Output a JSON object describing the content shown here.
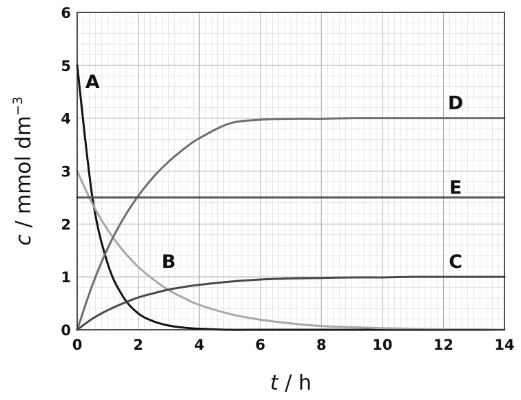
{
  "chart_data": {
    "type": "line",
    "xlabel": {
      "var": "t",
      "sep": " / ",
      "unit": "h"
    },
    "ylabel": {
      "var": "c",
      "sep": " / ",
      "unit": "mmol dm",
      "exp": "−3"
    },
    "xlim": [
      0,
      14
    ],
    "ylim": [
      0,
      6
    ],
    "xticks": [
      0,
      2,
      4,
      6,
      8,
      10,
      12,
      14
    ],
    "yticks": [
      0,
      1,
      2,
      3,
      4,
      5,
      6
    ],
    "grid": {
      "major": true,
      "minor": true,
      "minor_per_major_x": 10,
      "minor_per_major_y": 5
    },
    "x": [
      0,
      0.5,
      1,
      1.5,
      2,
      2.5,
      3,
      3.5,
      4,
      5,
      6,
      7,
      8,
      9,
      10,
      11,
      12,
      13,
      14
    ],
    "series": [
      {
        "name": "A",
        "color": "#111111",
        "values": [
          5.0,
          2.5,
          1.25,
          0.63,
          0.31,
          0.16,
          0.08,
          0.04,
          0.02,
          0.0,
          0.0,
          0.0,
          0.0,
          0.0,
          0.0,
          0.0,
          0.0,
          0.0,
          0.0
        ]
      },
      {
        "name": "B",
        "color": "#a8a8a8",
        "values": [
          3.0,
          2.38,
          1.89,
          1.5,
          1.19,
          0.95,
          0.75,
          0.6,
          0.47,
          0.3,
          0.19,
          0.12,
          0.07,
          0.05,
          0.03,
          0.02,
          0.01,
          0.01,
          0.0
        ]
      },
      {
        "name": "C",
        "color": "#474747",
        "values": [
          0.0,
          0.21,
          0.37,
          0.5,
          0.61,
          0.69,
          0.76,
          0.81,
          0.85,
          0.91,
          0.95,
          0.97,
          0.98,
          0.99,
          0.99,
          1.0,
          1.0,
          1.0,
          1.0
        ]
      },
      {
        "name": "D",
        "color": "#6e6e6e",
        "values": [
          0.0,
          0.85,
          1.54,
          2.09,
          2.53,
          2.89,
          3.18,
          3.42,
          3.62,
          3.9,
          3.97,
          3.99,
          3.99,
          4.0,
          4.0,
          4.0,
          4.0,
          4.0,
          4.0
        ]
      },
      {
        "name": "E",
        "color": "#555555",
        "values": [
          2.5,
          2.5,
          2.5,
          2.5,
          2.5,
          2.5,
          2.5,
          2.5,
          2.5,
          2.5,
          2.5,
          2.5,
          2.5,
          2.5,
          2.5,
          2.5,
          2.5,
          2.5,
          2.5
        ]
      }
    ],
    "curve_labels": [
      {
        "text": "A",
        "x": 0.5,
        "y": 4.7
      },
      {
        "text": "B",
        "x": 3.0,
        "y": 1.3
      },
      {
        "text": "C",
        "x": 12.4,
        "y": 1.3
      },
      {
        "text": "D",
        "x": 12.4,
        "y": 4.3
      },
      {
        "text": "E",
        "x": 12.4,
        "y": 2.7
      }
    ]
  }
}
